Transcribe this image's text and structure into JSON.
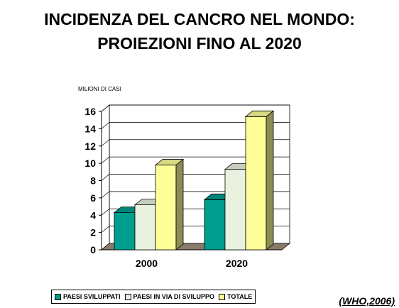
{
  "title_line1": "INCIDENZA DEL CANCRO NEL MONDO:",
  "title_line2": "PROIEZIONI FINO AL 2020",
  "source": "(WHO,2006)",
  "chart_data": {
    "type": "bar",
    "ylabel": "MILIONI DI CASI",
    "ylim": [
      0,
      16
    ],
    "yticks": [
      0,
      2,
      4,
      6,
      8,
      10,
      12,
      14,
      16
    ],
    "grid": true,
    "legend_position": "bottom",
    "categories": [
      "2000",
      "2020"
    ],
    "series": [
      {
        "name": "PAESI SVILUPPATI",
        "values": [
          4.3,
          5.8
        ],
        "color": "#009e8e"
      },
      {
        "name": "PAESI IN VIA DI SVILUPPO",
        "values": [
          5.2,
          9.3
        ],
        "color": "#e9f2df"
      },
      {
        "name": "TOTALE",
        "values": [
          9.8,
          15.4
        ],
        "color": "#ffff99"
      }
    ]
  }
}
